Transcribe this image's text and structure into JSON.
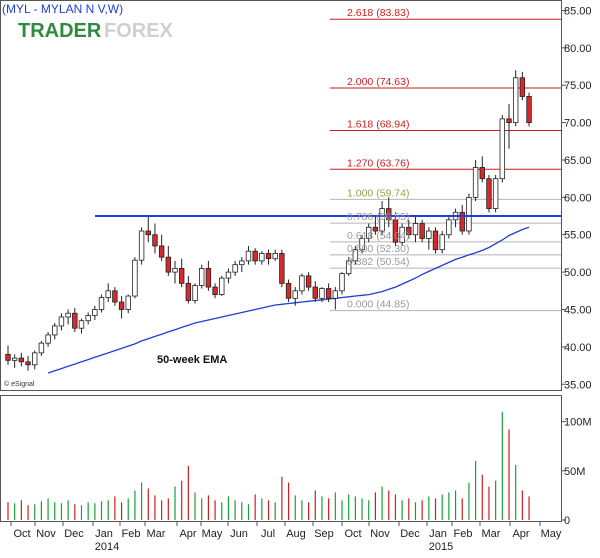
{
  "header": {
    "symbol_title": "(MYL - MYLAN N V,W)",
    "logo_text_a": "TRADER",
    "logo_text_b": "FOREX",
    "source": "© eSignal"
  },
  "annotation": {
    "ema_label": "50-week EMA"
  },
  "colors": {
    "up": "#1a9e3a",
    "down": "#cc1f1f",
    "candle_body_down": "#d42a2a",
    "ema": "#1f3fd6",
    "resistance": "#1f3fd6",
    "fib_red": "#cc1f1f",
    "fib_grey": "#9a9a9a",
    "fib_green_text": "#8aa84a"
  },
  "chart_data": [
    {
      "type": "candlestick",
      "title": "(MYL - MYLAN N V,W)",
      "price_axis_ticks": [
        "35.00",
        "40.00",
        "45.00",
        "50.00",
        "55.00",
        "60.00",
        "65.00",
        "70.00",
        "75.00",
        "80.00",
        "85.00"
      ],
      "ylim": [
        34.5,
        86
      ],
      "x_tick_labels": [
        "Oct",
        "Nov",
        "Dec",
        "Jan",
        "Feb",
        "Mar",
        "Apr",
        "May",
        "Jun",
        "Jul",
        "Aug",
        "Sep",
        "Oct",
        "Nov",
        "Dec",
        "Jan",
        "Feb",
        "Mar",
        "Apr",
        "May"
      ],
      "year_labels": [
        {
          "label": "2014",
          "at_month": "Jan"
        },
        {
          "label": "2015",
          "at_month": "Jan"
        }
      ],
      "resistance_level": 57.5,
      "fib_levels": [
        {
          "label": "2.618 (83.83)",
          "value": 83.83,
          "style": "red"
        },
        {
          "label": "2.000 (74.63)",
          "value": 74.63,
          "style": "red"
        },
        {
          "label": "1.618 (68.94)",
          "value": 68.94,
          "style": "red"
        },
        {
          "label": "1.270 (63.76)",
          "value": 63.76,
          "style": "red"
        },
        {
          "label": "1.000 (59.74)",
          "value": 59.74,
          "style": "grey"
        },
        {
          "label": "0.786 (56.55)",
          "value": 56.55,
          "style": "grey"
        },
        {
          "label": "0.618 (54.04)",
          "value": 54.04,
          "style": "grey"
        },
        {
          "label": "0.500 (52.30)",
          "value": 52.3,
          "style": "grey"
        },
        {
          "label": "0.382 (50.54)",
          "value": 50.54,
          "style": "grey"
        },
        {
          "label": "0.000 (44.85)",
          "value": 44.85,
          "style": "grey"
        }
      ],
      "candles_ohlc": [
        [
          39,
          40.2,
          37.6,
          38.2
        ],
        [
          38.2,
          39.0,
          37.2,
          38.5
        ],
        [
          38.5,
          39.2,
          37.4,
          38.0
        ],
        [
          38.0,
          38.8,
          36.8,
          37.6
        ],
        [
          37.6,
          39.5,
          37.0,
          39.2
        ],
        [
          39.2,
          40.8,
          38.8,
          40.5
        ],
        [
          40.5,
          42.0,
          40.0,
          41.6
        ],
        [
          41.6,
          43.2,
          41.0,
          42.8
        ],
        [
          42.8,
          44.5,
          42.2,
          44.0
        ],
        [
          44.0,
          45.0,
          43.0,
          44.5
        ],
        [
          44.5,
          45.2,
          42.0,
          42.5
        ],
        [
          42.5,
          43.8,
          41.8,
          43.5
        ],
        [
          43.5,
          44.6,
          43.0,
          44.2
        ],
        [
          44.2,
          45.5,
          43.6,
          45.0
        ],
        [
          45.0,
          47.0,
          44.6,
          46.6
        ],
        [
          46.6,
          48.5,
          46.0,
          47.5
        ],
        [
          47.5,
          48.0,
          45.5,
          46.0
        ],
        [
          46.0,
          46.8,
          43.8,
          45.0
        ],
        [
          45.0,
          47.0,
          44.5,
          46.8
        ],
        [
          46.8,
          52.0,
          46.5,
          51.6
        ],
        [
          51.6,
          56.0,
          51.0,
          55.5
        ],
        [
          55.5,
          57.5,
          54.0,
          55.0
        ],
        [
          55.0,
          56.5,
          52.5,
          53.5
        ],
        [
          53.5,
          55.0,
          51.5,
          52.0
        ],
        [
          52.0,
          53.5,
          49.5,
          50.0
        ],
        [
          50.0,
          51.5,
          48.5,
          50.5
        ],
        [
          50.5,
          51.8,
          48.0,
          48.5
        ],
        [
          48.5,
          49.5,
          45.8,
          46.2
        ],
        [
          46.2,
          48.5,
          45.8,
          48.2
        ],
        [
          48.2,
          51.0,
          47.8,
          50.5
        ],
        [
          50.5,
          51.5,
          47.5,
          48.0
        ],
        [
          48.0,
          48.5,
          46.5,
          47.0
        ],
        [
          47.0,
          49.5,
          46.8,
          49.2
        ],
        [
          49.2,
          50.5,
          48.5,
          50.0
        ],
        [
          50.0,
          51.5,
          49.5,
          51.0
        ],
        [
          51.0,
          52.0,
          50.0,
          51.5
        ],
        [
          51.5,
          53.5,
          51.0,
          52.8
        ],
        [
          52.8,
          53.2,
          51.0,
          51.5
        ],
        [
          51.5,
          52.8,
          51.0,
          52.5
        ],
        [
          52.5,
          53.0,
          51.0,
          51.8
        ],
        [
          51.8,
          53.0,
          51.5,
          52.5
        ],
        [
          52.5,
          53.0,
          48.0,
          48.5
        ],
        [
          48.5,
          49.0,
          46.0,
          46.5
        ],
        [
          46.5,
          48.0,
          45.5,
          47.5
        ],
        [
          47.5,
          49.8,
          47.0,
          49.5
        ],
        [
          49.5,
          50.0,
          47.5,
          48.0
        ],
        [
          48.0,
          48.8,
          46.0,
          46.5
        ],
        [
          46.5,
          48.0,
          46.0,
          47.8
        ],
        [
          47.8,
          48.5,
          46.0,
          46.5
        ],
        [
          46.5,
          48.0,
          45.0,
          47.5
        ],
        [
          47.5,
          50.0,
          47.0,
          49.8
        ],
        [
          49.8,
          52.0,
          49.5,
          51.5
        ],
        [
          51.5,
          53.5,
          51.0,
          53.0
        ],
        [
          53.0,
          55.0,
          52.5,
          54.5
        ],
        [
          54.5,
          56.5,
          54.0,
          56.0
        ],
        [
          56.0,
          57.5,
          55.0,
          55.5
        ],
        [
          55.5,
          59.5,
          55.0,
          58.5
        ],
        [
          58.5,
          60.0,
          56.0,
          57.0
        ],
        [
          57.0,
          58.0,
          53.5,
          54.0
        ],
        [
          54.0,
          56.5,
          53.5,
          56.0
        ],
        [
          56.0,
          57.0,
          54.5,
          55.0
        ],
        [
          55.0,
          57.5,
          54.0,
          56.5
        ],
        [
          56.5,
          57.0,
          54.0,
          54.5
        ],
        [
          54.5,
          56.0,
          53.0,
          55.5
        ],
        [
          55.5,
          56.0,
          52.5,
          53.0
        ],
        [
          53.0,
          55.5,
          52.5,
          55.0
        ],
        [
          55.0,
          57.5,
          54.5,
          57.0
        ],
        [
          57.0,
          58.5,
          56.0,
          58.0
        ],
        [
          58.0,
          59.0,
          55.0,
          55.5
        ],
        [
          55.5,
          60.5,
          55.0,
          60.0
        ],
        [
          60.0,
          65.0,
          59.5,
          64.0
        ],
        [
          64.0,
          65.5,
          62.0,
          62.5
        ],
        [
          62.5,
          63.0,
          58.0,
          58.5
        ],
        [
          58.5,
          63.0,
          58.0,
          62.5
        ],
        [
          62.5,
          71.0,
          62.0,
          70.5
        ],
        [
          70.5,
          72.5,
          66.5,
          70.0
        ],
        [
          70.0,
          77.0,
          69.5,
          76.0
        ],
        [
          76.0,
          76.8,
          73.0,
          73.5
        ],
        [
          73.5,
          74.0,
          69.5,
          70.0
        ]
      ],
      "ema_50_week": [
        36.5,
        36.8,
        37.1,
        37.4,
        37.7,
        38.0,
        38.3,
        38.6,
        38.9,
        39.2,
        39.5,
        39.8,
        40.1,
        40.4,
        40.8,
        41.1,
        41.4,
        41.7,
        42.0,
        42.3,
        42.6,
        42.9,
        43.2,
        43.4,
        43.6,
        43.8,
        44.0,
        44.2,
        44.4,
        44.6,
        44.8,
        45.0,
        45.2,
        45.4,
        45.6,
        45.7,
        45.8,
        45.9,
        46.0,
        46.1,
        46.2,
        46.3,
        46.4,
        46.5,
        46.6,
        46.7,
        46.8,
        46.9,
        47.0,
        47.2,
        47.4,
        47.7,
        48.0,
        48.4,
        48.8,
        49.2,
        49.7,
        50.1,
        50.5,
        50.9,
        51.3,
        51.7,
        52.0,
        52.3,
        52.6,
        52.9,
        53.3,
        53.8,
        54.3,
        54.9,
        55.3,
        55.7,
        56.0
      ],
      "volume_axis_ticks": [
        "0",
        "50M",
        "100M"
      ],
      "volume_millions": [
        18,
        17,
        20,
        15,
        16,
        19,
        22,
        18,
        17,
        20,
        16,
        15,
        18,
        17,
        19,
        20,
        24,
        18,
        22,
        30,
        38,
        32,
        25,
        20,
        22,
        34,
        40,
        55,
        28,
        22,
        25,
        20,
        18,
        24,
        20,
        18,
        16,
        26,
        22,
        20,
        18,
        44,
        38,
        25,
        20,
        18,
        30,
        24,
        22,
        28,
        20,
        26,
        24,
        22,
        20,
        28,
        34,
        30,
        26,
        20,
        22,
        18,
        20,
        24,
        22,
        26,
        28,
        30,
        22,
        38,
        60,
        46,
        34,
        40,
        110,
        92,
        56,
        30,
        24
      ]
    }
  ]
}
